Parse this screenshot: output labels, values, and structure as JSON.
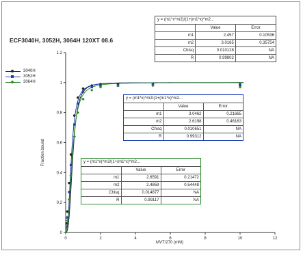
{
  "chart_data": {
    "type": "scatter",
    "title": "ECF3040H, 3052H, 3064H 120XT 08.6",
    "xlabel": "MVT/270 (mM)",
    "ylabel": "Fraction bound",
    "xlim": [
      0,
      12
    ],
    "ylim": [
      0,
      1.2
    ],
    "xticks": [
      "0",
      "2",
      "4",
      "6",
      "8",
      "10",
      "12"
    ],
    "yticks": [
      "0",
      "0.2",
      "0.4",
      "0.6",
      "0.8",
      "1",
      "1.2"
    ],
    "grid": false,
    "legend_position": "left",
    "series": [
      {
        "name": "3040H",
        "color": "#222222",
        "marker": "circle",
        "x": [
          0.05,
          0.1,
          0.2,
          0.3,
          0.5,
          0.7,
          1,
          1.5,
          2,
          3,
          5,
          10
        ],
        "y": [
          0.06,
          0.14,
          0.33,
          0.52,
          0.78,
          0.9,
          0.96,
          0.98,
          0.99,
          0.99,
          0.99,
          0.98
        ],
        "fit": {
          "m1": 2.457,
          "m2": 3.0165
        }
      },
      {
        "name": "3052H",
        "color": "#1f3fb4",
        "marker": "square",
        "x": [
          0.05,
          0.1,
          0.2,
          0.3,
          0.5,
          0.7,
          1,
          1.5,
          2,
          3,
          5,
          10
        ],
        "y": [
          0.04,
          0.1,
          0.27,
          0.45,
          0.72,
          0.86,
          0.94,
          0.97,
          0.98,
          0.98,
          0.99,
          0.99
        ],
        "fit": {
          "m1": 3.0462,
          "m2": 2.6198
        }
      },
      {
        "name": "3064H",
        "color": "#2a8a2a",
        "marker": "diamond",
        "x": [
          0.05,
          0.1,
          0.2,
          0.3,
          0.5,
          0.7,
          1,
          1.5,
          2,
          3,
          5,
          10
        ],
        "y": [
          0.03,
          0.08,
          0.22,
          0.38,
          0.64,
          0.8,
          0.89,
          0.95,
          0.97,
          0.98,
          0.98,
          0.97
        ],
        "fit": {
          "m1": 2.6591,
          "m2": 2.4859
        }
      }
    ],
    "fit_tables": [
      {
        "equation": "y = (m1*x^m2)/(1+(m1*x)^m2...",
        "header": [
          "",
          "Value",
          "Error"
        ],
        "rows": [
          [
            "m1",
            "2.457",
            "0.10536"
          ],
          [
            "m2",
            "3.0165",
            "0.35754"
          ],
          [
            "Chisq",
            "0.010128",
            "NA"
          ],
          [
            "R",
            "0.99802",
            "NA"
          ]
        ]
      },
      {
        "equation": "y = (m1*x)^m2/(1+(m1*x)^m2...",
        "header": [
          "",
          "Value",
          "Error"
        ],
        "rows": [
          [
            "m1",
            "3.0462",
            "0.21665"
          ],
          [
            "m2",
            "2.6198",
            "0.46163"
          ],
          [
            "Chisq",
            "0.010651",
            "NA"
          ],
          [
            "R",
            "0.99312",
            "NA"
          ]
        ]
      },
      {
        "equation": "y = (m1*x)^m2/(1+(m1*x)^m2...",
        "header": [
          "",
          "Value",
          "Error"
        ],
        "rows": [
          [
            "m1",
            "2.6591",
            "0.21472"
          ],
          [
            "m2",
            "2.4859",
            "0.54448"
          ],
          [
            "Chisq",
            "0.014877",
            "NA"
          ],
          [
            "R",
            "0.99117",
            "NA"
          ]
        ]
      }
    ]
  }
}
